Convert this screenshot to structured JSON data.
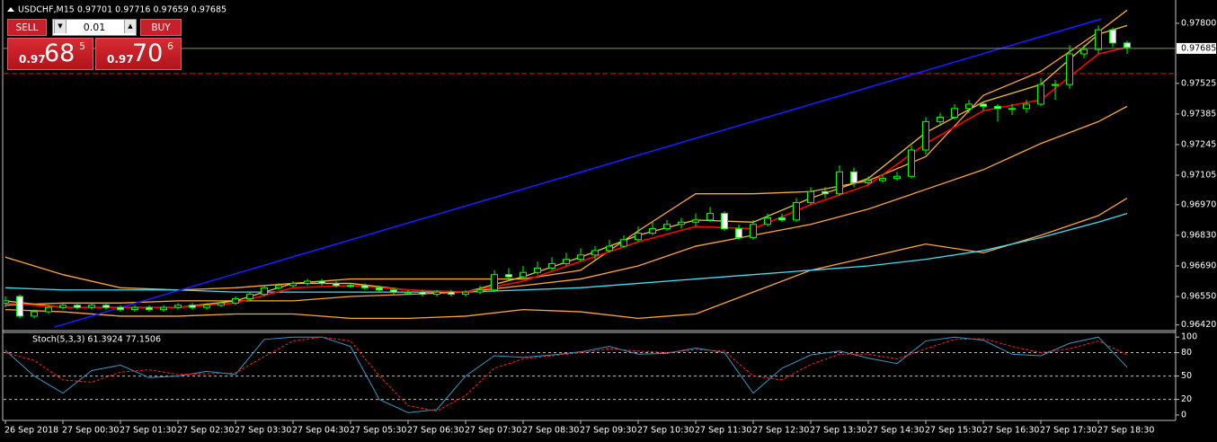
{
  "trade_panel": {
    "sell": "SELL",
    "buy": "BUY",
    "lot": "0.01",
    "sell_price": {
      "big_figure": "0.97",
      "pips": "68",
      "point": "5"
    },
    "buy_price": {
      "big_figure": "0.97",
      "pips": "70",
      "point": "6"
    }
  },
  "chart_data": [
    {
      "type": "candlestick",
      "title": "USDCHF,M15  0.97701 0.97716 0.97659 0.97685",
      "categories": [
        "26 Sep 2018",
        null,
        null,
        null,
        "27 Sep 00:30",
        null,
        null,
        null,
        "27 Sep 01:30",
        null,
        null,
        null,
        "27 Sep 02:30",
        null,
        null,
        null,
        "27 Sep 03:30",
        null,
        null,
        null,
        "27 Sep 04:30",
        null,
        null,
        null,
        "27 Sep 05:30",
        null,
        null,
        null,
        "27 Sep 06:30",
        null,
        null,
        null,
        "27 Sep 07:30",
        null,
        null,
        null,
        "27 Sep 08:30",
        null,
        null,
        null,
        "27 Sep 09:30",
        null,
        null,
        null,
        "27 Sep 10:30",
        null,
        null,
        null,
        "27 Sep 11:30",
        null,
        null,
        null,
        "27 Sep 12:30",
        null,
        null,
        null,
        "27 Sep 13:30",
        null,
        null,
        null,
        "27 Sep 14:30",
        null,
        null,
        null,
        "27 Sep 15:30",
        null,
        null,
        null,
        "27 Sep 16:30",
        null,
        null,
        null,
        "27 Sep 17:30",
        null,
        null,
        null,
        "27 Sep 18:30",
        null,
        null
      ],
      "open": [
        0.9652,
        0.9655,
        0.9646,
        0.9648,
        0.965,
        0.9651,
        0.965,
        0.9651,
        0.965,
        0.9649,
        0.965,
        0.9649,
        0.965,
        0.9651,
        0.965,
        0.9651,
        0.9652,
        0.9654,
        0.9656,
        0.9659,
        0.966,
        0.9661,
        0.9662,
        0.9661,
        0.966,
        0.966,
        0.9659,
        0.9658,
        0.9657,
        0.9657,
        0.9656,
        0.9657,
        0.9656,
        0.9657,
        0.9658,
        0.9665,
        0.9664,
        0.9666,
        0.9668,
        0.967,
        0.9672,
        0.9674,
        0.9676,
        0.9678,
        0.9681,
        0.9684,
        0.9686,
        0.9688,
        0.9689,
        0.969,
        0.9693,
        0.9686,
        0.9682,
        0.9688,
        0.9691,
        0.969,
        0.9698,
        0.9703,
        0.9702,
        0.9712,
        0.9707,
        0.9708,
        0.9709,
        0.971,
        0.9722,
        0.9735,
        0.9737,
        0.9741,
        0.9743,
        0.9742,
        0.9741,
        0.9741,
        0.9743,
        0.9752,
        0.9752,
        0.9766,
        0.9768,
        0.9777,
        0.9771
      ],
      "high": [
        0.9655,
        0.9656,
        0.9649,
        0.9651,
        0.9652,
        0.9652,
        0.9652,
        0.9652,
        0.9651,
        0.9651,
        0.9651,
        0.9651,
        0.9652,
        0.9652,
        0.9652,
        0.9653,
        0.9655,
        0.9657,
        0.966,
        0.9661,
        0.9662,
        0.9663,
        0.9663,
        0.9662,
        0.9661,
        0.9661,
        0.966,
        0.9659,
        0.9658,
        0.9658,
        0.9658,
        0.9658,
        0.9658,
        0.966,
        0.9667,
        0.9668,
        0.9669,
        0.9671,
        0.9673,
        0.9675,
        0.9677,
        0.9678,
        0.9681,
        0.9683,
        0.9687,
        0.9689,
        0.969,
        0.9691,
        0.9693,
        0.9696,
        0.9694,
        0.9688,
        0.969,
        0.9693,
        0.9693,
        0.97,
        0.9705,
        0.9705,
        0.9715,
        0.9714,
        0.971,
        0.9711,
        0.9712,
        0.9724,
        0.9737,
        0.9739,
        0.9743,
        0.9745,
        0.9744,
        0.9743,
        0.9743,
        0.9745,
        0.9755,
        0.9754,
        0.977,
        0.977,
        0.9779,
        0.9778,
        0.9772
      ],
      "low": [
        0.965,
        0.9645,
        0.9645,
        0.9647,
        0.9649,
        0.9649,
        0.9649,
        0.9649,
        0.9648,
        0.9648,
        0.9648,
        0.9648,
        0.9649,
        0.9649,
        0.9649,
        0.965,
        0.9651,
        0.9653,
        0.9655,
        0.9658,
        0.9659,
        0.966,
        0.966,
        0.9659,
        0.9659,
        0.9658,
        0.9657,
        0.9656,
        0.9656,
        0.9655,
        0.9655,
        0.9655,
        0.9655,
        0.9656,
        0.9657,
        0.9662,
        0.9663,
        0.9665,
        0.9667,
        0.9669,
        0.9671,
        0.9672,
        0.9675,
        0.9677,
        0.968,
        0.9683,
        0.9685,
        0.9686,
        0.9687,
        0.9689,
        0.9685,
        0.9681,
        0.9681,
        0.9687,
        0.9689,
        0.9689,
        0.9697,
        0.97,
        0.9701,
        0.9705,
        0.9706,
        0.9707,
        0.9708,
        0.9709,
        0.972,
        0.9733,
        0.9736,
        0.9739,
        0.974,
        0.9735,
        0.9738,
        0.9739,
        0.9742,
        0.9745,
        0.975,
        0.9764,
        0.9766,
        0.9769,
        0.9766
      ],
      "close": [
        0.9653,
        0.9646,
        0.9648,
        0.965,
        0.9651,
        0.965,
        0.9651,
        0.965,
        0.9649,
        0.965,
        0.9649,
        0.965,
        0.9651,
        0.965,
        0.9651,
        0.9652,
        0.9654,
        0.9656,
        0.9659,
        0.966,
        0.9661,
        0.9662,
        0.9661,
        0.966,
        0.966,
        0.9659,
        0.9658,
        0.9657,
        0.9657,
        0.9656,
        0.9657,
        0.9656,
        0.9657,
        0.9658,
        0.9665,
        0.9664,
        0.9666,
        0.9668,
        0.967,
        0.9672,
        0.9674,
        0.9676,
        0.9678,
        0.9681,
        0.9684,
        0.9686,
        0.9688,
        0.9689,
        0.969,
        0.9693,
        0.9686,
        0.9682,
        0.9688,
        0.9691,
        0.969,
        0.9698,
        0.9703,
        0.9702,
        0.9712,
        0.9707,
        0.9708,
        0.9709,
        0.971,
        0.9722,
        0.9735,
        0.9737,
        0.9741,
        0.9743,
        0.9742,
        0.9741,
        0.9741,
        0.9743,
        0.9752,
        0.9752,
        0.9766,
        0.9768,
        0.9777,
        0.9771,
        0.9769
      ],
      "candle_color": "#00ff00",
      "up_fill": "#000000",
      "down_fill": "#ffffff",
      "overlays": [
        {
          "color": "#ffa53a",
          "x": [
            0,
            4,
            8,
            12,
            16,
            20,
            24,
            28,
            32,
            36,
            40,
            44,
            48,
            52,
            56,
            60,
            64,
            68,
            72,
            76,
            78
          ],
          "values": [
            0.9673,
            0.9665,
            0.9659,
            0.9658,
            0.9659,
            0.9661,
            0.9663,
            0.9663,
            0.9663,
            0.9663,
            0.9667,
            0.9685,
            0.9702,
            0.9702,
            0.9703,
            0.9708,
            0.9719,
            0.9747,
            0.9758,
            0.9776,
            0.9786
          ]
        },
        {
          "color": "#ffa53a",
          "x": [
            0,
            4,
            8,
            12,
            16,
            20,
            24,
            28,
            32,
            36,
            40,
            44,
            48,
            52,
            56,
            60,
            64,
            68,
            72,
            76,
            78
          ],
          "values": [
            0.9651,
            0.9652,
            0.9652,
            0.9653,
            0.9653,
            0.9653,
            0.9655,
            0.9656,
            0.9657,
            0.966,
            0.9663,
            0.9669,
            0.9678,
            0.9683,
            0.9688,
            0.9695,
            0.9704,
            0.9713,
            0.9725,
            0.9735,
            0.9742
          ]
        },
        {
          "color": "#ffa53a",
          "x": [
            0,
            4,
            8,
            12,
            16,
            20,
            24,
            28,
            32,
            36,
            40,
            44,
            48,
            52,
            56,
            60,
            64,
            68,
            72,
            76,
            78
          ],
          "values": [
            0.9649,
            0.9648,
            0.9646,
            0.9646,
            0.9647,
            0.9647,
            0.9645,
            0.9645,
            0.9646,
            0.9649,
            0.9648,
            0.9645,
            0.9647,
            0.9657,
            0.9667,
            0.9673,
            0.9679,
            0.9675,
            0.9683,
            0.9692,
            0.97
          ]
        },
        {
          "color": "#40e0f0",
          "x": [
            0,
            4,
            8,
            12,
            16,
            20,
            24,
            28,
            32,
            36,
            40,
            44,
            48,
            52,
            56,
            60,
            64,
            68,
            72,
            76,
            78
          ],
          "values": [
            0.9659,
            0.9658,
            0.9658,
            0.9658,
            0.9657,
            0.9657,
            0.9657,
            0.9657,
            0.9657,
            0.9658,
            0.9659,
            0.9661,
            0.9663,
            0.9665,
            0.9667,
            0.9669,
            0.9672,
            0.9676,
            0.9682,
            0.9689,
            0.9693
          ]
        },
        {
          "color": "#f0c030",
          "x": [
            0,
            4,
            8,
            12,
            16,
            20,
            24,
            28,
            32,
            36,
            40,
            44,
            48,
            52,
            56,
            60,
            64,
            68,
            72,
            76,
            78
          ],
          "values": [
            0.9653,
            0.965,
            0.965,
            0.965,
            0.9653,
            0.9661,
            0.9661,
            0.9658,
            0.9657,
            0.9664,
            0.9673,
            0.9683,
            0.969,
            0.9689,
            0.97,
            0.9709,
            0.973,
            0.9744,
            0.9752,
            0.9775,
            0.9779
          ]
        },
        {
          "color": "#ff0000",
          "x": [
            0,
            4,
            8,
            12,
            16,
            20,
            24,
            28,
            32,
            36,
            40,
            44,
            48,
            52,
            56,
            60,
            64,
            68,
            72,
            76,
            78
          ],
          "values": [
            0.9652,
            0.965,
            0.965,
            0.965,
            0.9652,
            0.9659,
            0.966,
            0.9658,
            0.9657,
            0.9662,
            0.9671,
            0.968,
            0.9687,
            0.9686,
            0.9697,
            0.9706,
            0.9725,
            0.974,
            0.9745,
            0.9766,
            0.9769
          ]
        }
      ],
      "trendline": {
        "color": "#1a1aff",
        "x": [
          3.4,
          76.2
        ],
        "values": [
          0.9641,
          0.9782
        ]
      },
      "bid": 0.97685,
      "bid_color": "#7a9a60",
      "level": 0.9757,
      "level_color": "#ff0000",
      "ylim": [
        0.96398,
        0.97886
      ],
      "yticks": [
        {
          "value": 0.978,
          "label": "0.97800"
        },
        0.97525,
        0.97385,
        0.97245,
        0.97105,
        {
          "value": 0.9697,
          "label": "0.96970"
        },
        {
          "value": 0.9683,
          "label": "0.96830"
        },
        {
          "value": 0.9669,
          "label": "0.96690"
        },
        {
          "value": 0.9655,
          "label": "0.96550"
        },
        {
          "value": 0.9642,
          "label": "0.96420"
        }
      ]
    },
    {
      "type": "line",
      "title": "Stoch(5,3,3) 61.3924 77.1506",
      "x": [
        0,
        2,
        4,
        6,
        8,
        10,
        12,
        14,
        16,
        18,
        20,
        22,
        24,
        26,
        28,
        30,
        32,
        34,
        36,
        38,
        40,
        42,
        44,
        46,
        48,
        50,
        52,
        54,
        56,
        58,
        60,
        62,
        64,
        66,
        68,
        70,
        72,
        74,
        76,
        78
      ],
      "series": [
        {
          "color": "#3b97c4",
          "dash": false,
          "values": [
            83,
            50,
            28,
            57,
            64,
            48,
            50,
            56,
            52,
            97,
            100,
            100,
            88,
            20,
            3,
            7,
            50,
            76,
            74,
            77,
            81,
            88,
            78,
            79,
            86,
            80,
            28,
            60,
            77,
            82,
            73,
            66,
            95,
            100,
            96,
            78,
            76,
            92,
            100,
            61.3924
          ]
        },
        {
          "color": "#ff2020",
          "dash": true,
          "values": [
            80,
            70,
            45,
            42,
            55,
            58,
            52,
            53,
            54,
            75,
            95,
            100,
            95,
            50,
            12,
            5,
            25,
            60,
            72,
            76,
            80,
            85,
            82,
            80,
            84,
            82,
            50,
            45,
            65,
            78,
            78,
            72,
            85,
            97,
            98,
            88,
            80,
            85,
            95,
            77.1506
          ]
        }
      ],
      "ylim": [
        -7,
        106
      ],
      "yticks": [
        0,
        20,
        50,
        80,
        100
      ],
      "grid": true
    }
  ]
}
